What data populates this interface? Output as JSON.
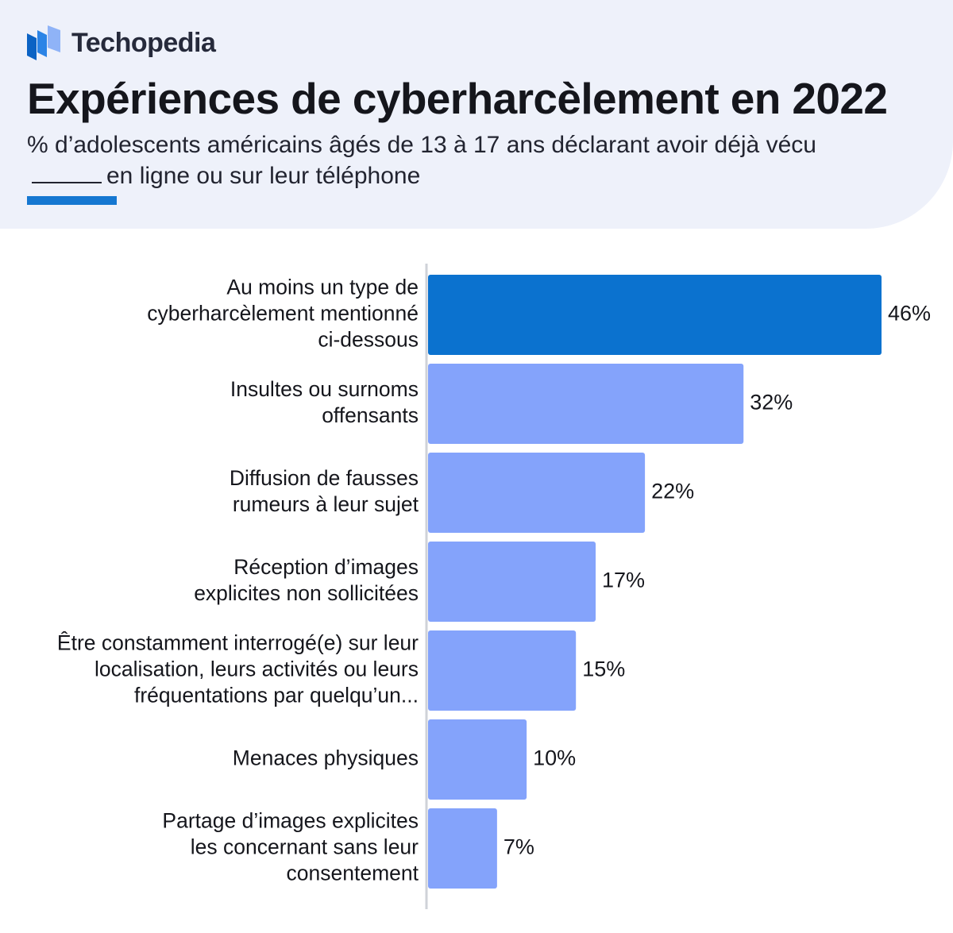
{
  "brand": {
    "name": "Techopedia",
    "logo_icon": "stacked-pages-icon"
  },
  "header": {
    "title": "Expériences de cyberharcèlement en 2022",
    "subtitle_part1": "% d’adolescents américains âgés de 13 à 17 ans déclarant avoir déjà vécu",
    "subtitle_part2": "en ligne ou sur leur téléphone"
  },
  "colors": {
    "highlight": "#0b72cf",
    "bar": "#84a3fb",
    "header_bg": "#eef1fa",
    "accent": "#1577d1",
    "axis": "#cfd2d8"
  },
  "chart_data": {
    "type": "bar",
    "orientation": "horizontal",
    "title": "Expériences de cyberharcèlement en 2022",
    "subtitle": "% d’adolescents américains âgés de 13 à 17 ans déclarant avoir déjà vécu _____ en ligne ou sur leur téléphone",
    "categories": [
      [
        "Au moins un type de",
        "cyberharcèlement mentionné",
        "ci-dessous"
      ],
      [
        "Insultes ou surnoms",
        "offensants"
      ],
      [
        "Diffusion de fausses",
        "rumeurs à leur sujet"
      ],
      [
        "Réception d’images",
        "explicites non sollicitées"
      ],
      [
        "Être constamment interrogé(e) sur leur",
        "localisation, leurs activités ou leurs",
        "fréquentations par quelqu’un..."
      ],
      [
        "Menaces physiques"
      ],
      [
        "Partage d’images explicites",
        "les concernant sans leur",
        "consentement"
      ]
    ],
    "values": [
      46,
      32,
      22,
      17,
      15,
      10,
      7
    ],
    "value_labels": [
      "46%",
      "32%",
      "22%",
      "17%",
      "15%",
      "10%",
      "7%"
    ],
    "highlight_index": 0,
    "xlim": [
      0,
      46
    ],
    "grid": false,
    "xlabel": "",
    "ylabel": ""
  }
}
